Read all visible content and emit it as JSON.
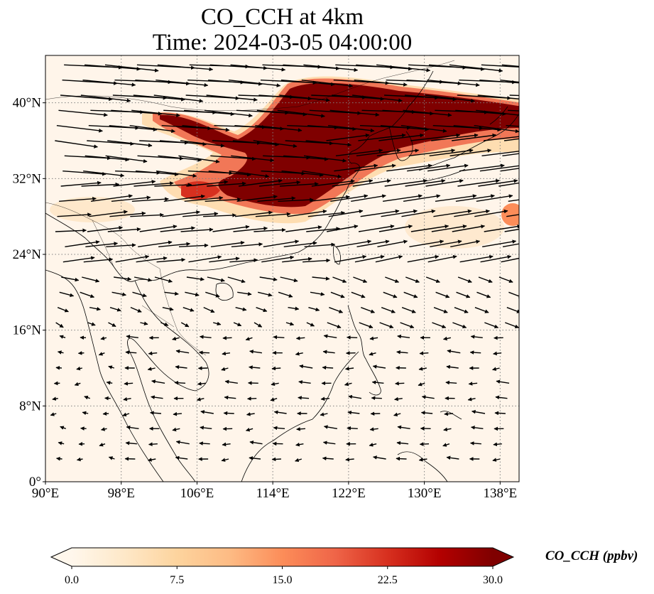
{
  "title": {
    "line1": "CO_CCH at 4km",
    "line2": "Time: 2024-03-05 04:00:00"
  },
  "map": {
    "projection": "PlateCarree",
    "lon_range": [
      90,
      140
    ],
    "lat_range": [
      0,
      45
    ],
    "gridlines": "dotted grey",
    "lon_ticks": [
      {
        "value": 90,
        "label": "90°E"
      },
      {
        "value": 98,
        "label": "98°E"
      },
      {
        "value": 106,
        "label": "106°E"
      },
      {
        "value": 114,
        "label": "114°E"
      },
      {
        "value": 122,
        "label": "122°E"
      },
      {
        "value": 130,
        "label": "130°E"
      },
      {
        "value": 138,
        "label": "138°E"
      }
    ],
    "lat_ticks": [
      {
        "value": 0,
        "label": "0°"
      },
      {
        "value": 8,
        "label": "8°N"
      },
      {
        "value": 16,
        "label": "16°N"
      },
      {
        "value": 24,
        "label": "24°N"
      },
      {
        "value": 32,
        "label": "32°N"
      },
      {
        "value": 40,
        "label": "40°N"
      }
    ],
    "field": "CO_CCH concentration (ppbv), OrRd colormap; high values (>25) in a plume from northern China (approx 102-140°E, 29-43°N) extending east over Korea and Japan",
    "wind_vectors": "westerly winds north of ~20°N, weak easterlies in the tropics"
  },
  "colorbar": {
    "label": "CO_CCH (ppbv)",
    "colormap": "OrRd",
    "range": [
      0.0,
      30.0
    ],
    "extend": "both",
    "ticks": [
      "0.0",
      "7.5",
      "15.0",
      "22.5",
      "30.0"
    ],
    "colors": [
      "#fff7ec",
      "#fee8c8",
      "#fdd49e",
      "#fdbb84",
      "#fc8d59",
      "#ef6548",
      "#d7301f",
      "#b30000",
      "#7f0000"
    ]
  }
}
